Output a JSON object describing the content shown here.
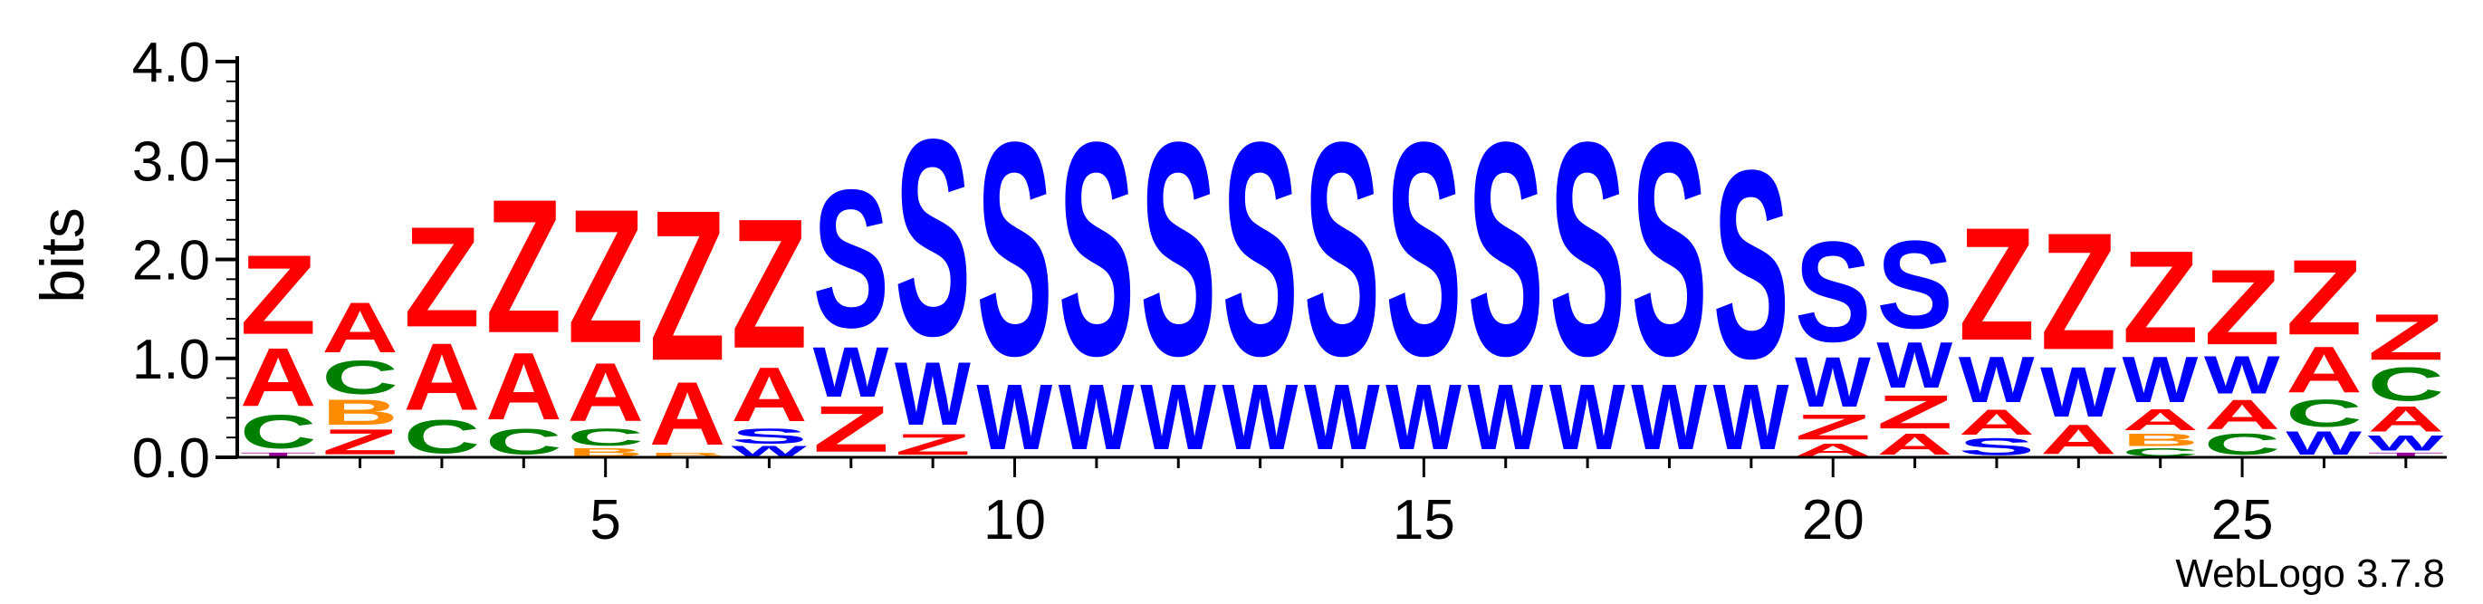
{
  "chart_data": {
    "type": "sequence-logo",
    "ylabel": "bits",
    "ylim": [
      0,
      4
    ],
    "yticks": [
      "0.0",
      "1.0",
      "2.0",
      "3.0",
      "4.0"
    ],
    "xticks": [
      5,
      10,
      15,
      20,
      25
    ],
    "positions": 27,
    "colors": {
      "S": "#0000ff",
      "W": "#0000ff",
      "Z": "#ff0000",
      "A": "#ff0000",
      "C": "#008000",
      "B": "#ff8c00",
      "T": "#9b009b"
    },
    "columns": [
      [
        {
          "l": "T",
          "h": 0.05
        },
        {
          "l": "C",
          "h": 0.4
        },
        {
          "l": "A",
          "h": 0.7
        },
        {
          "l": "Z",
          "h": 0.95
        }
      ],
      [
        {
          "l": "Z",
          "h": 0.3
        },
        {
          "l": "B",
          "h": 0.3
        },
        {
          "l": "C",
          "h": 0.4
        },
        {
          "l": "A",
          "h": 0.6
        }
      ],
      [
        {
          "l": "C",
          "h": 0.4
        },
        {
          "l": "A",
          "h": 0.8
        },
        {
          "l": "Z",
          "h": 1.2
        }
      ],
      [
        {
          "l": "C",
          "h": 0.3
        },
        {
          "l": "A",
          "h": 0.8
        },
        {
          "l": "Z",
          "h": 1.6
        }
      ],
      [
        {
          "l": "B",
          "h": 0.1
        },
        {
          "l": "C",
          "h": 0.2
        },
        {
          "l": "A",
          "h": 0.7
        },
        {
          "l": "Z",
          "h": 1.6
        }
      ],
      [
        {
          "l": "B",
          "h": 0.05
        },
        {
          "l": "A",
          "h": 0.75
        },
        {
          "l": "Z",
          "h": 1.8
        }
      ],
      [
        {
          "l": "W",
          "h": 0.12
        },
        {
          "l": "S",
          "h": 0.18
        },
        {
          "l": "A",
          "h": 0.65
        },
        {
          "l": "Z",
          "h": 1.55
        }
      ],
      [
        {
          "l": "Z",
          "h": 0.55
        },
        {
          "l": "W",
          "h": 0.6
        },
        {
          "l": "S",
          "h": 1.65
        }
      ],
      [
        {
          "l": "Z",
          "h": 0.25
        },
        {
          "l": "W",
          "h": 0.75
        },
        {
          "l": "S",
          "h": 2.35
        }
      ],
      [
        {
          "l": "W",
          "h": 0.78
        },
        {
          "l": "S",
          "h": 2.55
        }
      ],
      [
        {
          "l": "W",
          "h": 0.78
        },
        {
          "l": "S",
          "h": 2.55
        }
      ],
      [
        {
          "l": "W",
          "h": 0.78
        },
        {
          "l": "S",
          "h": 2.55
        }
      ],
      [
        {
          "l": "W",
          "h": 0.78
        },
        {
          "l": "S",
          "h": 2.55
        }
      ],
      [
        {
          "l": "W",
          "h": 0.78
        },
        {
          "l": "S",
          "h": 2.55
        }
      ],
      [
        {
          "l": "W",
          "h": 0.78
        },
        {
          "l": "S",
          "h": 2.55
        }
      ],
      [
        {
          "l": "W",
          "h": 0.78
        },
        {
          "l": "S",
          "h": 2.55
        }
      ],
      [
        {
          "l": "W",
          "h": 0.78
        },
        {
          "l": "S",
          "h": 2.55
        }
      ],
      [
        {
          "l": "W",
          "h": 0.78
        },
        {
          "l": "S",
          "h": 2.55
        }
      ],
      [
        {
          "l": "W",
          "h": 0.78
        },
        {
          "l": "S",
          "h": 2.25
        }
      ],
      [
        {
          "l": "A",
          "h": 0.15
        },
        {
          "l": "Z",
          "h": 0.3
        },
        {
          "l": "W",
          "h": 0.6
        },
        {
          "l": "S",
          "h": 1.2
        }
      ],
      [
        {
          "l": "A",
          "h": 0.25
        },
        {
          "l": "Z",
          "h": 0.4
        },
        {
          "l": "W",
          "h": 0.55
        },
        {
          "l": "S",
          "h": 1.05
        }
      ],
      [
        {
          "l": "S",
          "h": 0.2
        },
        {
          "l": "A",
          "h": 0.3
        },
        {
          "l": "W",
          "h": 0.55
        },
        {
          "l": "Z",
          "h": 1.35
        }
      ],
      [
        {
          "l": "A",
          "h": 0.35
        },
        {
          "l": "W",
          "h": 0.6
        },
        {
          "l": "Z",
          "h": 1.4
        }
      ],
      [
        {
          "l": "C",
          "h": 0.1
        },
        {
          "l": "B",
          "h": 0.15
        },
        {
          "l": "A",
          "h": 0.25
        },
        {
          "l": "W",
          "h": 0.55
        },
        {
          "l": "Z",
          "h": 1.1
        }
      ],
      [
        {
          "l": "C",
          "h": 0.25
        },
        {
          "l": "A",
          "h": 0.35
        },
        {
          "l": "W",
          "h": 0.45
        },
        {
          "l": "Z",
          "h": 0.9
        }
      ],
      [
        {
          "l": "W",
          "h": 0.28
        },
        {
          "l": "C",
          "h": 0.32
        },
        {
          "l": "A",
          "h": 0.55
        },
        {
          "l": "Z",
          "h": 0.9
        }
      ],
      [
        {
          "l": "T",
          "h": 0.05
        },
        {
          "l": "W",
          "h": 0.18
        },
        {
          "l": "A",
          "h": 0.3
        },
        {
          "l": "C",
          "h": 0.4
        },
        {
          "l": "Z",
          "h": 0.55
        }
      ]
    ]
  },
  "footer": {
    "credit": "WebLogo 3.7.8"
  }
}
